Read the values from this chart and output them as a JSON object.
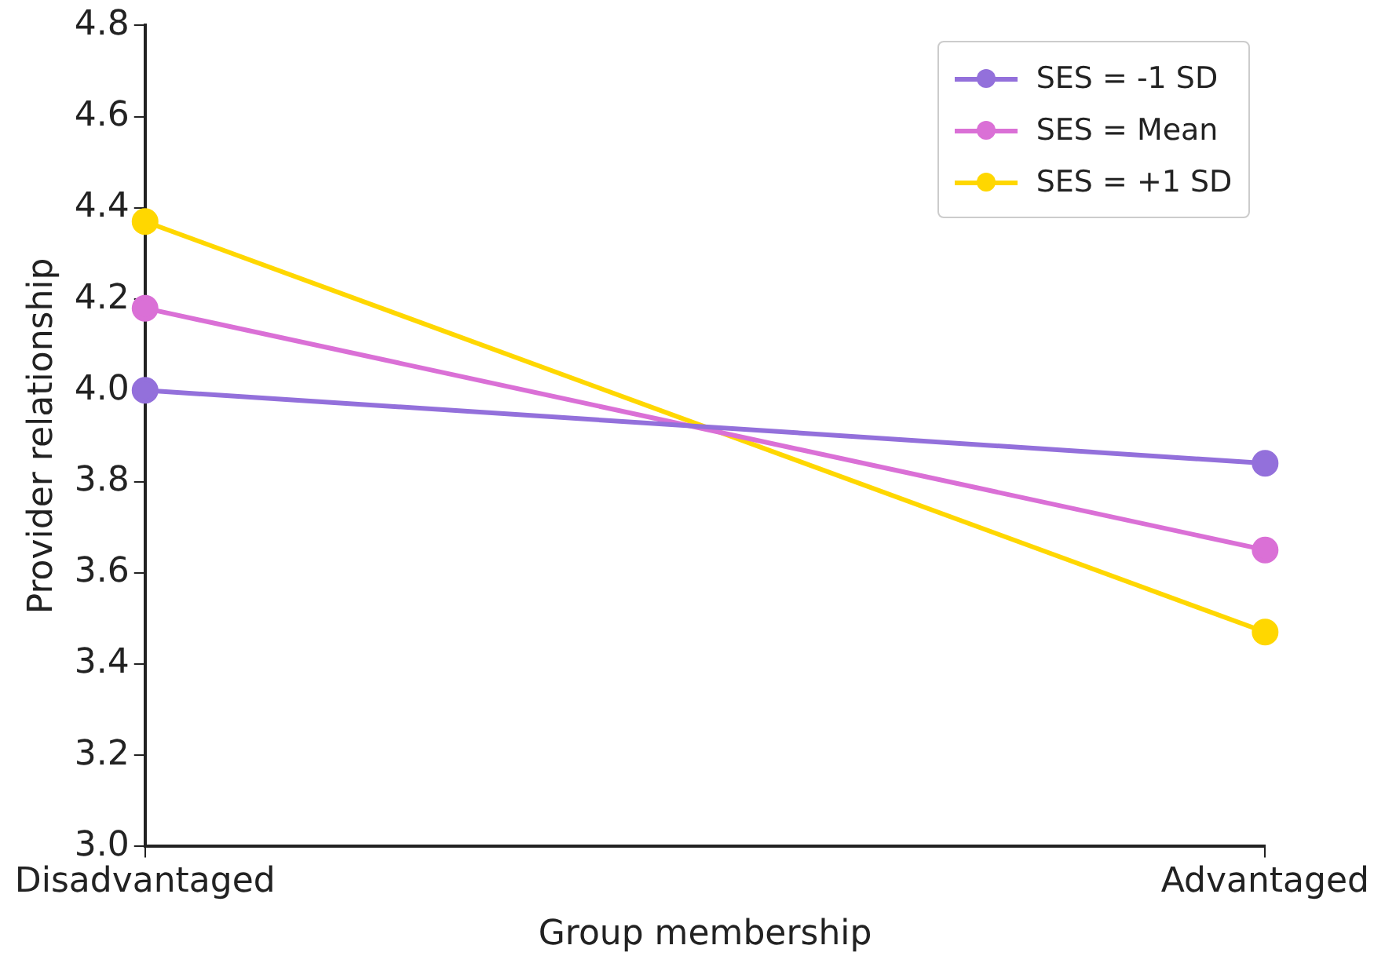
{
  "chart_data": {
    "type": "line",
    "xlabel": "Group membership",
    "ylabel": "Provider relationship",
    "categories": [
      "Disadvantaged",
      "Advantaged"
    ],
    "series": [
      {
        "name": "SES = -1 SD",
        "color": "#9370db",
        "values": [
          4.0,
          3.84
        ]
      },
      {
        "name": "SES = Mean",
        "color": "#da70d6",
        "values": [
          4.18,
          3.65
        ]
      },
      {
        "name": "SES = +1 SD",
        "color": "#ffd700",
        "values": [
          4.37,
          3.47
        ]
      }
    ],
    "ylim": [
      3.0,
      4.8
    ],
    "yticks": [
      {
        "value": 3,
        "label": "3.0"
      },
      3.2,
      3.4,
      3.6,
      3.8,
      {
        "value": 4,
        "label": "4.0"
      },
      4.2,
      4.4,
      4.6,
      4.8
    ],
    "grid": false,
    "legend": "top right",
    "marker": "circle",
    "line_style": "solid"
  }
}
